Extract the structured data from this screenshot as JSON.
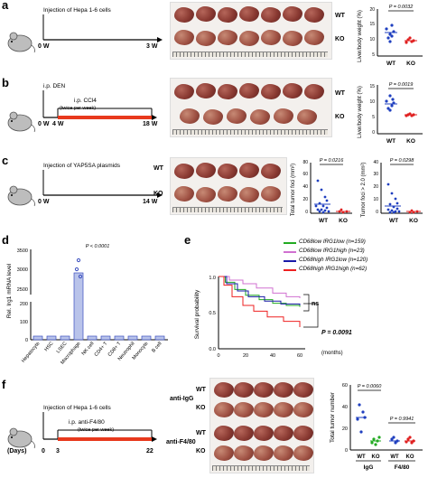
{
  "panels": {
    "a": {
      "letter": "a",
      "protocol": "Injection of Hepa 1-6 cells",
      "t0": "0 W",
      "t1": "3 W",
      "wt": "WT",
      "ko": "KO",
      "ylabel": "Liver/body weight (%)",
      "pvalue": "P = 0.0032",
      "xcats": [
        "WT",
        "KO"
      ],
      "yticks": [
        "5",
        "10",
        "15",
        "20"
      ]
    },
    "b": {
      "letter": "b",
      "protocol_ip": "i.p. DEN",
      "protocol_ccl4": "i.p. CCl4",
      "protocol_freq": "(twice per week)",
      "t0": "0 W",
      "t1": "4 W",
      "t2": "18 W",
      "wt": "WT",
      "ko": "KO",
      "ylabel": "Liver/body weight (%)",
      "pvalue": "P = 0.0019",
      "xcats": [
        "WT",
        "KO"
      ],
      "yticks": [
        "0",
        "5",
        "10",
        "15"
      ]
    },
    "c": {
      "letter": "c",
      "protocol": "Injection of YAP5SA plasmids",
      "t0": "0 W",
      "t1": "14 W",
      "wt": "WT",
      "ko": "KO",
      "ylabel1": "Total tumor foci (mm²)",
      "pvalue1": "P = 0.0216",
      "ylabel2": "Tumor foci > 2.0 (mm²)",
      "pvalue2": "P = 0.0298",
      "xcats": [
        "WT",
        "KO"
      ],
      "yticks1": [
        "0",
        "20",
        "40",
        "60",
        "80"
      ],
      "yticks2": [
        "0",
        "10",
        "20",
        "30",
        "40"
      ]
    },
    "d": {
      "letter": "d",
      "ylabel": "Rel. Irg1 mRNA level",
      "pvalue": "P < 0.0001",
      "yticks": [
        "0",
        "100",
        "200",
        "2500",
        "3000",
        "3500"
      ],
      "categories": [
        "Hepatocyte",
        "HSC",
        "LSEC",
        "Macrophage",
        "NK cell",
        "CD4+ T",
        "CD8+ T",
        "Neutrophil",
        "Monocyte",
        "B cell"
      ]
    },
    "e": {
      "letter": "e",
      "ylabel": "Survival probability",
      "xlabel": "(months)",
      "yticks": [
        "0.0",
        "0.5",
        "1.0"
      ],
      "xticks": [
        "0",
        "20",
        "40",
        "60"
      ],
      "ns": "ns",
      "pvalue": "P = 0.0091",
      "legend": [
        {
          "label": "CD68low IRG1low (n=159)",
          "color": "#22aa22"
        },
        {
          "label": "CD68low IRG1high (n=23)",
          "color": "#d070d0"
        },
        {
          "label": "CD68high IRG1low (n=120)",
          "color": "#1a1aa8"
        },
        {
          "label": "CD68high IRG1high (n=62)",
          "color": "#ee2020"
        }
      ]
    },
    "f": {
      "letter": "f",
      "protocol": "Injection of Hepa 1-6 cells",
      "protocol_ip": "i.p. anti-F4/80",
      "protocol_freq": "(twice per week)",
      "days": "(Days)",
      "t0": "0",
      "t1": "3",
      "t2": "22",
      "anti_igg": "anti-IgG",
      "anti_f480": "anti-F4/80",
      "wt": "WT",
      "ko": "KO",
      "ylabel": "Total tumor number",
      "pvalue1": "P = 0.0060",
      "pvalue2": "P = 0.9941",
      "xcats": [
        "WT",
        "KO",
        "WT",
        "KO"
      ],
      "groups": [
        "IgG",
        "F4/80"
      ],
      "yticks": [
        "0",
        "20",
        "40",
        "60"
      ]
    }
  },
  "colors": {
    "wt_dot": "#1f3fbf",
    "ko_dot": "#e02020",
    "timeline_red": "#e8391d",
    "bar_fill": "#b9c3ea",
    "bar_edge": "#3b4fbf"
  }
}
